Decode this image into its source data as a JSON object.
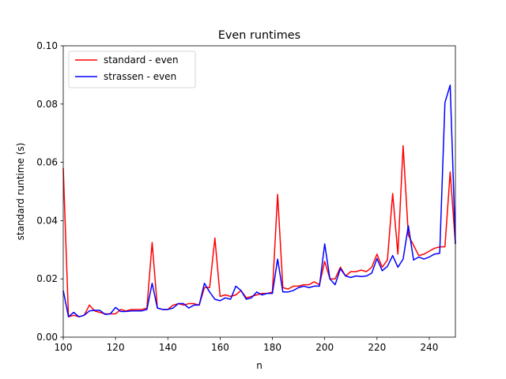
{
  "chart_data": {
    "type": "line",
    "title": "Even runtimes",
    "xlabel": "n",
    "ylabel": "standard runtime (s)",
    "xlim": [
      100,
      250
    ],
    "ylim": [
      0.0,
      0.1
    ],
    "xticks": [
      100,
      120,
      140,
      160,
      180,
      200,
      220,
      240
    ],
    "xtick_labels": [
      "100",
      "120",
      "140",
      "160",
      "180",
      "200",
      "220",
      "240"
    ],
    "yticks": [
      0.0,
      0.02,
      0.04,
      0.06,
      0.08,
      0.1
    ],
    "ytick_labels": [
      "0.00",
      "0.02",
      "0.04",
      "0.06",
      "0.08",
      "0.10"
    ],
    "grid": false,
    "legend_position": "top-left",
    "x": [
      100,
      102,
      104,
      106,
      108,
      110,
      112,
      114,
      116,
      118,
      120,
      122,
      124,
      126,
      128,
      130,
      132,
      134,
      136,
      138,
      140,
      142,
      144,
      146,
      148,
      150,
      152,
      154,
      156,
      158,
      160,
      162,
      164,
      166,
      168,
      170,
      172,
      174,
      176,
      178,
      180,
      182,
      184,
      186,
      188,
      190,
      192,
      194,
      196,
      198,
      200,
      202,
      204,
      206,
      208,
      210,
      212,
      214,
      216,
      218,
      220,
      222,
      224,
      226,
      228,
      230,
      232,
      234,
      236,
      238,
      240,
      242,
      244,
      246,
      248,
      250
    ],
    "series": [
      {
        "name": "standard - even",
        "color": "#ff0000",
        "values": [
          0.058,
          0.007,
          0.0075,
          0.007,
          0.0075,
          0.011,
          0.009,
          0.0085,
          0.008,
          0.008,
          0.008,
          0.0095,
          0.009,
          0.0095,
          0.0095,
          0.0095,
          0.01,
          0.0325,
          0.01,
          0.0095,
          0.0095,
          0.011,
          0.0115,
          0.011,
          0.0115,
          0.0115,
          0.011,
          0.017,
          0.017,
          0.034,
          0.014,
          0.0145,
          0.014,
          0.0145,
          0.016,
          0.0135,
          0.014,
          0.0145,
          0.015,
          0.015,
          0.0155,
          0.049,
          0.017,
          0.0165,
          0.0175,
          0.0175,
          0.018,
          0.018,
          0.019,
          0.018,
          0.026,
          0.02,
          0.02,
          0.024,
          0.021,
          0.0225,
          0.0225,
          0.023,
          0.0225,
          0.024,
          0.0285,
          0.024,
          0.0265,
          0.0493,
          0.0285,
          0.0657,
          0.035,
          0.0315,
          0.028,
          0.0285,
          0.0295,
          0.0305,
          0.031,
          0.031,
          0.0567,
          0.032
        ]
      },
      {
        "name": "strassen - even",
        "color": "#0000ff",
        "values": [
          0.016,
          0.007,
          0.0085,
          0.007,
          0.0075,
          0.009,
          0.0092,
          0.0092,
          0.0078,
          0.008,
          0.0102,
          0.0088,
          0.0088,
          0.009,
          0.009,
          0.009,
          0.0095,
          0.0185,
          0.01,
          0.0095,
          0.0095,
          0.01,
          0.0115,
          0.0115,
          0.01,
          0.011,
          0.011,
          0.0185,
          0.0155,
          0.013,
          0.0125,
          0.0135,
          0.013,
          0.0175,
          0.016,
          0.013,
          0.0135,
          0.0155,
          0.0145,
          0.015,
          0.015,
          0.0268,
          0.0155,
          0.0155,
          0.016,
          0.017,
          0.0175,
          0.017,
          0.0175,
          0.0175,
          0.032,
          0.02,
          0.018,
          0.0235,
          0.021,
          0.0205,
          0.021,
          0.0208,
          0.021,
          0.022,
          0.027,
          0.0228,
          0.0243,
          0.028,
          0.024,
          0.0268,
          0.0382,
          0.0265,
          0.0275,
          0.0268,
          0.0275,
          0.0285,
          0.0288,
          0.0805,
          0.0865,
          0.032
        ]
      }
    ]
  }
}
